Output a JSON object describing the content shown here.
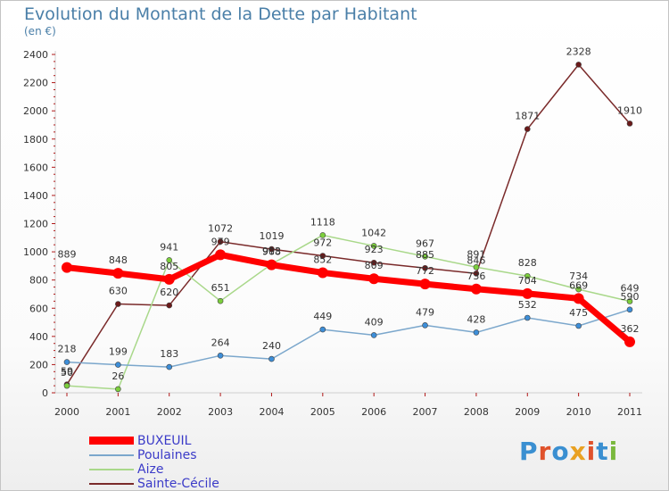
{
  "header": {
    "title": "Evolution du Montant de la Dette par Habitant",
    "subtitle": "(en €)"
  },
  "brand": {
    "name": "Proxiti",
    "letter_colors": [
      "#3a8fd1",
      "#e0522b",
      "#3a8fd1",
      "#e9a122",
      "#e0522b",
      "#3a8fd1",
      "#7ab83d"
    ]
  },
  "chart_data": {
    "type": "line",
    "title": "Evolution du Montant de la Dette par Habitant",
    "subtitle": "(en €)",
    "xlabel": "",
    "ylabel": "",
    "x": [
      "2000",
      "2001",
      "2002",
      "2003",
      "2004",
      "2005",
      "2006",
      "2007",
      "2008",
      "2009",
      "2010",
      "2011"
    ],
    "ylim": [
      0,
      2400
    ],
    "yticks": [
      "0",
      "200",
      "400",
      "600",
      "800",
      "1000",
      "1200",
      "1400",
      "1600",
      "1800",
      "2000",
      "2200",
      "2400"
    ],
    "grid": false,
    "legend_position": "bottom-left",
    "series": [
      {
        "name": "Sainte-Cécile",
        "color": "#7a2a2a",
        "marker_color": "#6b1a1a",
        "values": [
          59,
          630,
          620,
          1072,
          1019,
          972,
          923,
          885,
          846,
          1871,
          2328,
          1910
        ],
        "labels": [
          "59",
          "630",
          "620",
          "1072",
          "1019",
          "972",
          "923",
          "885",
          "846",
          "1871",
          "2328",
          "1910"
        ]
      },
      {
        "name": "Aize",
        "color": "#a9d88a",
        "marker_color": "#7ccf3c",
        "values": [
          50,
          26,
          941,
          651,
          913,
          1118,
          1042,
          967,
          891,
          828,
          734,
          649
        ],
        "labels": [
          "50",
          "26",
          "941",
          "651",
          "913",
          "1118",
          "1042",
          "967",
          "891",
          "828",
          "734",
          "649"
        ]
      },
      {
        "name": "Poulaines",
        "color": "#7ba7cc",
        "marker_color": "#3d8ed8",
        "values": [
          218,
          199,
          183,
          264,
          240,
          449,
          409,
          479,
          428,
          532,
          475,
          590
        ],
        "labels": [
          "218",
          "199",
          "183",
          "264",
          "240",
          "449",
          "409",
          "479",
          "428",
          "532",
          "475",
          "590"
        ]
      },
      {
        "name": "BUXEUIL",
        "color": "#ff0000",
        "marker_color": "#ff0000",
        "values": [
          889,
          848,
          805,
          979,
          908,
          852,
          809,
          772,
          736,
          704,
          669,
          362
        ],
        "labels": [
          "889",
          "848",
          "805",
          "979",
          "908",
          "852",
          "809",
          "772",
          "736",
          "704",
          "669",
          "362"
        ]
      }
    ],
    "legend": [
      "BUXEUIL",
      "Poulaines",
      "Aize",
      "Sainte-Cécile"
    ]
  }
}
